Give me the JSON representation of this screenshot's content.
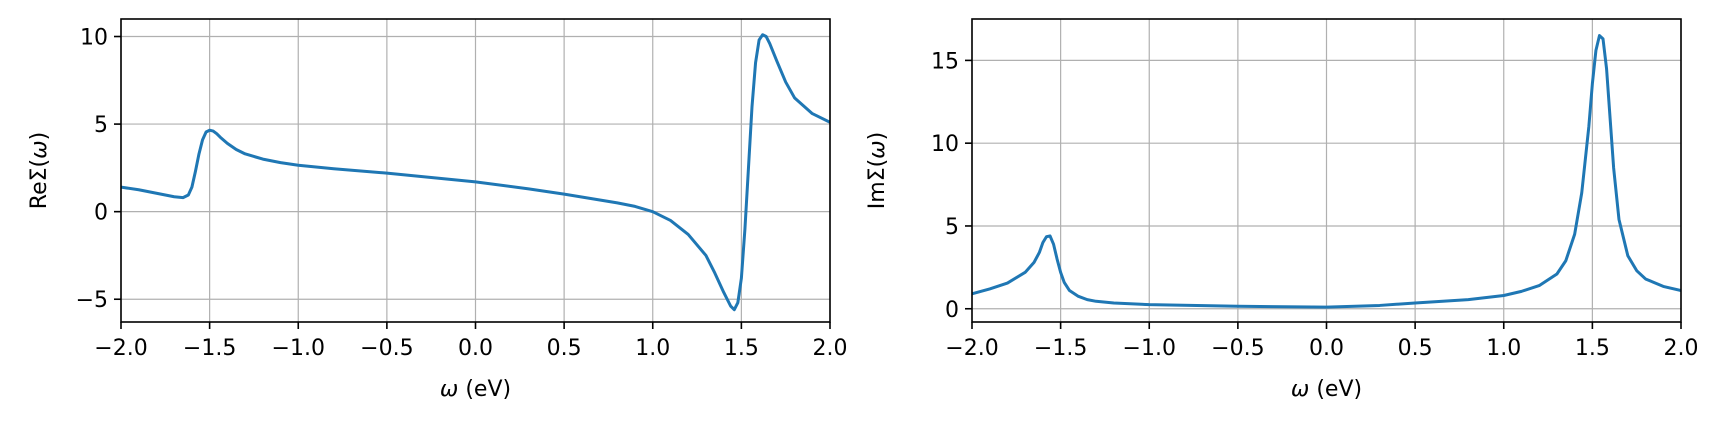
{
  "chart_data": [
    {
      "type": "line",
      "xlabel": "ω (eV)",
      "ylabel": "ReΣ(ω)",
      "xlim": [
        -2.0,
        2.0
      ],
      "ylim": [
        -6.3,
        11.0
      ],
      "xticks": [
        -2.0,
        -1.5,
        -1.0,
        -0.5,
        0.0,
        0.5,
        1.0,
        1.5,
        2.0
      ],
      "xtick_labels": [
        "−2.0",
        "−1.5",
        "−1.0",
        "−0.5",
        "0.0",
        "0.5",
        "1.0",
        "1.5",
        "2.0"
      ],
      "yticks": [
        -5,
        0,
        5,
        10
      ],
      "ytick_labels": [
        "−5",
        "0",
        "5",
        "10"
      ],
      "grid": true,
      "line_color": "#1f77b4",
      "series": [
        {
          "x": [
            -2.0,
            -1.9,
            -1.8,
            -1.7,
            -1.65,
            -1.62,
            -1.6,
            -1.58,
            -1.56,
            -1.54,
            -1.52,
            -1.5,
            -1.48,
            -1.46,
            -1.44,
            -1.4,
            -1.35,
            -1.3,
            -1.25,
            -1.2,
            -1.1,
            -1.0,
            -0.8,
            -0.5,
            -0.2,
            0.0,
            0.3,
            0.5,
            0.8,
            0.9,
            1.0,
            1.1,
            1.2,
            1.3,
            1.35,
            1.4,
            1.44,
            1.46,
            1.48,
            1.5,
            1.52,
            1.54,
            1.56,
            1.58,
            1.6,
            1.62,
            1.64,
            1.66,
            1.7,
            1.75,
            1.8,
            1.9,
            2.0
          ],
          "y": [
            1.4,
            1.25,
            1.05,
            0.85,
            0.8,
            0.95,
            1.4,
            2.3,
            3.3,
            4.1,
            4.55,
            4.65,
            4.6,
            4.45,
            4.25,
            3.9,
            3.55,
            3.3,
            3.15,
            3.0,
            2.8,
            2.65,
            2.45,
            2.2,
            1.9,
            1.7,
            1.3,
            1.0,
            0.5,
            0.3,
            0.0,
            -0.5,
            -1.3,
            -2.5,
            -3.5,
            -4.6,
            -5.4,
            -5.6,
            -5.2,
            -3.8,
            -1.0,
            2.5,
            6.0,
            8.5,
            9.8,
            10.1,
            10.0,
            9.6,
            8.6,
            7.4,
            6.5,
            5.6,
            5.1
          ]
        }
      ]
    },
    {
      "type": "line",
      "xlabel": "ω (eV)",
      "ylabel": "ImΣ(ω)",
      "xlim": [
        -2.0,
        2.0
      ],
      "ylim": [
        -0.8,
        17.5
      ],
      "xticks": [
        -2.0,
        -1.5,
        -1.0,
        -0.5,
        0.0,
        0.5,
        1.0,
        1.5,
        2.0
      ],
      "xtick_labels": [
        "−2.0",
        "−1.5",
        "−1.0",
        "−0.5",
        "0.0",
        "0.5",
        "1.0",
        "1.5",
        "2.0"
      ],
      "yticks": [
        0,
        5,
        10,
        15
      ],
      "ytick_labels": [
        "0",
        "5",
        "10",
        "15"
      ],
      "grid": true,
      "line_color": "#1f77b4",
      "series": [
        {
          "x": [
            -2.0,
            -1.9,
            -1.8,
            -1.7,
            -1.65,
            -1.62,
            -1.6,
            -1.58,
            -1.56,
            -1.54,
            -1.52,
            -1.5,
            -1.48,
            -1.45,
            -1.4,
            -1.35,
            -1.3,
            -1.2,
            -1.0,
            -0.5,
            0.0,
            0.3,
            0.5,
            0.8,
            1.0,
            1.1,
            1.2,
            1.3,
            1.35,
            1.4,
            1.44,
            1.48,
            1.5,
            1.52,
            1.54,
            1.56,
            1.58,
            1.6,
            1.62,
            1.65,
            1.7,
            1.75,
            1.8,
            1.9,
            2.0
          ],
          "y": [
            0.9,
            1.2,
            1.55,
            2.2,
            2.8,
            3.4,
            4.0,
            4.35,
            4.4,
            3.9,
            3.0,
            2.2,
            1.6,
            1.1,
            0.75,
            0.55,
            0.45,
            0.35,
            0.25,
            0.15,
            0.1,
            0.2,
            0.35,
            0.55,
            0.8,
            1.05,
            1.4,
            2.1,
            2.9,
            4.5,
            7.0,
            11.0,
            13.6,
            15.6,
            16.5,
            16.3,
            14.5,
            11.5,
            8.5,
            5.4,
            3.2,
            2.3,
            1.8,
            1.35,
            1.1
          ]
        }
      ]
    }
  ]
}
